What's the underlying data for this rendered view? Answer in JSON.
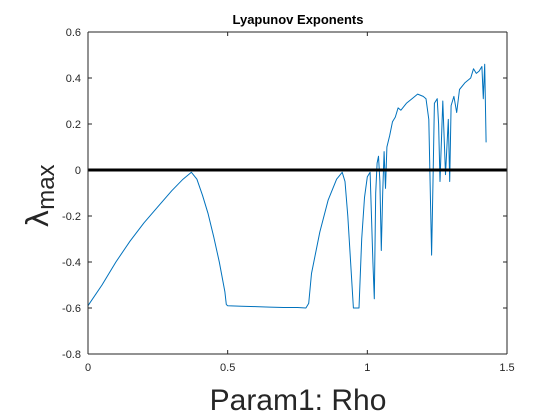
{
  "chart_data": {
    "type": "line",
    "title": "Lyapunov Exponents",
    "xlabel": "Param1: Rho",
    "ylabel": {
      "symbol": "λ",
      "subscript": "max"
    },
    "xlim": [
      0,
      1.5
    ],
    "ylim": [
      -0.8,
      0.6
    ],
    "xticks": [
      0,
      0.5,
      1,
      1.5
    ],
    "xtick_labels": [
      "0",
      "0.5",
      "1",
      "1.5"
    ],
    "yticks": [
      -0.8,
      -0.6,
      -0.4,
      -0.2,
      0,
      0.2,
      0.4,
      0.6
    ],
    "ytick_labels": [
      "-0.8",
      "-0.6",
      "-0.4",
      "-0.2",
      "0",
      "0.2",
      "0.4",
      "0.6"
    ],
    "grid": false,
    "reference_line": {
      "y": 0,
      "color": "#000000"
    },
    "series": [
      {
        "color": "#0072BD",
        "x": [
          0,
          0.05,
          0.1,
          0.15,
          0.2,
          0.25,
          0.3,
          0.34,
          0.37,
          0.39,
          0.41,
          0.43,
          0.45,
          0.47,
          0.49,
          0.495,
          0.5,
          0.55,
          0.6,
          0.65,
          0.7,
          0.75,
          0.78,
          0.79,
          0.8,
          0.83,
          0.86,
          0.89,
          0.91,
          0.92,
          0.93,
          0.94,
          0.95,
          0.96,
          0.97,
          0.98,
          0.99,
          1.0,
          1.01,
          1.02,
          1.025,
          1.03,
          1.035,
          1.04,
          1.045,
          1.05,
          1.055,
          1.06,
          1.065,
          1.07,
          1.08,
          1.09,
          1.1,
          1.11,
          1.12,
          1.14,
          1.16,
          1.18,
          1.2,
          1.21,
          1.22,
          1.23,
          1.235,
          1.24,
          1.245,
          1.25,
          1.255,
          1.26,
          1.27,
          1.28,
          1.29,
          1.295,
          1.3,
          1.31,
          1.32,
          1.33,
          1.35,
          1.37,
          1.38,
          1.39,
          1.4,
          1.41,
          1.415,
          1.42,
          1.425
        ],
        "y": [
          -0.59,
          -0.5,
          -0.4,
          -0.31,
          -0.23,
          -0.16,
          -0.09,
          -0.04,
          -0.01,
          -0.04,
          -0.11,
          -0.19,
          -0.29,
          -0.4,
          -0.53,
          -0.585,
          -0.59,
          -0.592,
          -0.594,
          -0.596,
          -0.598,
          -0.598,
          -0.6,
          -0.58,
          -0.45,
          -0.27,
          -0.13,
          -0.04,
          -0.01,
          -0.05,
          -0.2,
          -0.4,
          -0.6,
          -0.6,
          -0.6,
          -0.3,
          -0.12,
          -0.03,
          -0.01,
          -0.4,
          -0.56,
          -0.1,
          0.03,
          0.06,
          -0.05,
          -0.35,
          -0.1,
          0.08,
          -0.08,
          0.1,
          0.15,
          0.21,
          0.23,
          0.27,
          0.26,
          0.29,
          0.31,
          0.33,
          0.32,
          0.31,
          0.22,
          -0.37,
          -0.05,
          0.29,
          0.3,
          0.31,
          0.2,
          -0.05,
          0.3,
          -0.02,
          0.22,
          -0.05,
          0.28,
          0.32,
          0.25,
          0.35,
          0.38,
          0.4,
          0.44,
          0.42,
          0.43,
          0.45,
          0.31,
          0.46,
          0.12
        ]
      }
    ]
  }
}
